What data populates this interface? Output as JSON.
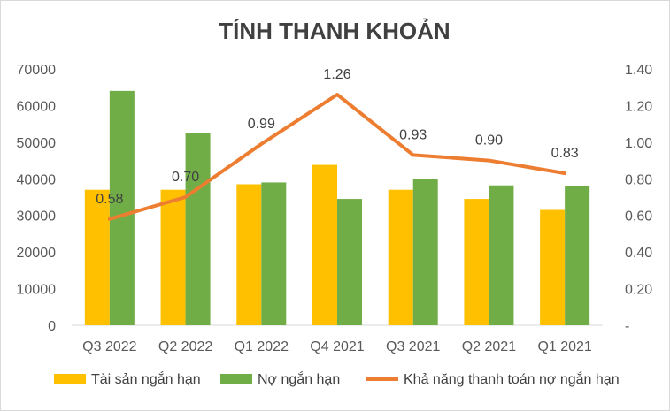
{
  "chart_data": {
    "type": "bar",
    "title": "TÍNH THANH KHOẢN",
    "categories": [
      "Q3 2022",
      "Q2 2022",
      "Q1 2022",
      "Q4 2021",
      "Q3 2021",
      "Q2 2021",
      "Q1 2021"
    ],
    "series": [
      {
        "name": "Tài sản ngắn hạn",
        "type": "bar",
        "axis": "left",
        "color": "#FFC000",
        "values": [
          37000,
          37000,
          38500,
          43800,
          37000,
          34500,
          31500
        ]
      },
      {
        "name": "Nợ ngắn hạn",
        "type": "bar",
        "axis": "left",
        "color": "#70AD47",
        "values": [
          64000,
          52500,
          39000,
          34500,
          40000,
          38200,
          38000
        ]
      },
      {
        "name": "Khả năng thanh toán nợ ngắn hạn",
        "type": "line",
        "axis": "right",
        "color": "#ED7D31",
        "values": [
          0.58,
          0.7,
          0.99,
          1.26,
          0.93,
          0.9,
          0.83
        ],
        "labels": [
          "0.58",
          "0.70",
          "0.99",
          "1.26",
          "0.93",
          "0.90",
          "0.83"
        ]
      }
    ],
    "y_left": {
      "ylim": [
        0,
        70000
      ],
      "ticks": [
        "0",
        "10000",
        "20000",
        "30000",
        "40000",
        "50000",
        "60000",
        "70000"
      ]
    },
    "y_right": {
      "ylim": [
        0,
        1.4
      ],
      "ticks": [
        "-",
        "0.20",
        "0.40",
        "0.60",
        "0.80",
        "1.00",
        "1.20",
        "1.40"
      ]
    },
    "grid": false,
    "legend": "bottom"
  }
}
